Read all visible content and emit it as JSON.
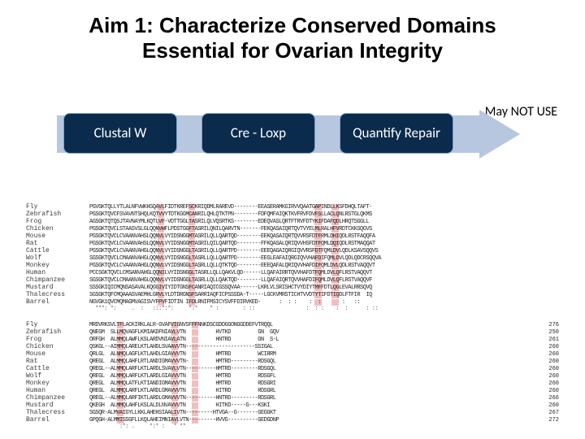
{
  "title": {
    "line1": "Aim 1: Characterize Conserved Domains",
    "line2": "Essential for Ovarian Integrity"
  },
  "note": "May NOT USE",
  "flow": {
    "pills": [
      {
        "label": "Clustal W"
      },
      {
        "label": "Cre - Loxp"
      },
      {
        "label": "Quantify Repair"
      }
    ],
    "arrow_bg_color": "#b6c7df",
    "pill_bg": "#0b2b4c",
    "pill_border": "#7da3c7",
    "pill_text": "#ffffff"
  },
  "alignment": {
    "highlight_color": "#eb8686",
    "block1": {
      "species": [
        "Fly",
        "Zebrafish",
        "Frog",
        "Chicken",
        "Mouse",
        "Rat",
        "Cattle",
        "Wolf",
        "Monkey",
        "Human",
        "Chimpanzee",
        "Mustard",
        "Thalecress",
        "Barrel"
      ],
      "sequences": [
        "PGVGKTQLLYTLALNFVWKHSQAVLFIDTKREFSCKRIQDMLRAREVD--------EEASERAMKGIRVVQAATGAPINDLLKSFDHQLTAFT-",
        "PGSGKTQVCFSVAVNTSHQLKQTVVYTDTKGGMCANRILQHLQTKTPN--------FDFQMFAIQKTKVFRVFDVFSLLACLQNLRSTGLQKMS",
        "AGSGKTQTQSJTAVNAYMLKQTLVF-VDTTGGLTASRILQLVQSRTKS--------EDEQVASLQRTFTRVFDTYKIFDAFQDLHRQTSGGLL",
        "PGSGKTQVCLSTAASVSLGLQQNVWFLPDSTGGFTASRILQNILQARVTN-------FEKQASAIQRTQVTVYELMLRALHFVRDTCKKSQGVS",
        "PGSGKTQVCLCVAANVAHSLQQNVLVYIDSNGGMTASRILQLLQARTQD--------EEKQASAIQRTQVVRSFDTFRMLDHIQDLRSTFAQQFA",
        "PGSGKTQVCLCVAANVAHSLQQNVLVYIDSNGGMTASRILQILQARTQD--------FFKQASALQRIQVVHSFDTFQMLDQIQDLRSTMAQQAT",
        "PGSGKTQVCLCVAANVAHGLQQNVLVYIDSNGGLTASRILQLLQARTPD--------EEEQAGAIQRGIQVVRSFDTFQMLDVLQDLKSAVSQQVS",
        "SGSGKTQVCLCMAANVAHGLQQNVLVYIDSNGGLTASRLLQLLQARTPD--------EEGLEAFAIQRGIQVVHAFDIFQMLDVLQDLQDCRSQQVA",
        "PGSGKTQVCLCVAANVAHGLQQNVLVYIDSNGGLTASRLLQLLQTKTQD--------EEEQAFALQRIQVVHAFDIFQMLDVLQDLRSTVAQQVT",
        "PCCSGKTQVCLCMSANVAHGLQQNILVYIDSNGGLTASRLLQLLQAKVLQD------LLQAFAIRRTQVVHAFDTFQMLDVLQFLRSTVAQQVT",
        "SGSGKTQVCLCMAANVAHGLQQNVLVYIDSNGGLTASRLLQLLQAKTQD--------LLQAFAIQRTQVVHAFDIFQMLDVLQFLRSTVAQQVF",
        "SSSGKIQICMQNSASAVALKQGGIVIYIDTGNSFCANRIAQICGSSQVAA------LKRLVLSRISHCTVYDIYTMFFDTLQGLEVALRRSQVQ",
        "SGSGKTQFCMQAAASVAEMHLGRVLYLDTDRGNSFSARRIAQFICPSSSDA-T-----LGCKVMRSTICHTVVDTYTIFDTIQDLFTFIR  IQ",
        "NGVGK1QVCMQMAGMVAGISVYFPVFIDTIN IFDLRNIFMSICYSVFFDIRVKED-      :  : :    :  :       :   ::    "
      ],
      "highlight_cols": [
        20,
        29,
        66,
        71
      ],
      "conservation": "  ***: *:     .  :   :::*:*:     *:*    * :        : ::                 :  : :    :  :      : ::"
    },
    "block2": {
      "species": [
        "Fly",
        "Zebrafish",
        "Frog",
        "Chicken",
        "Mouse",
        "Rat",
        "Cattle",
        "Wolf",
        "Monkey",
        "Human",
        "Chimpanzee",
        "Mustard",
        "Thalecress",
        "Barrel"
      ],
      "sequences": [
        "MRDVRKSVLTFLACKIRKLALR-GVAFVIGNVSFFFNNKDSCGDDGGONGGDDEFVTRQQL",
        "QNEGM  SLLMQVAGFLKMIAKDFNIAVLVTN          HVTKD         GN  GQV",
        "ORFGH  ALMMQLAWFLKSLARDVNIAVLATN          HNTRD         GN  S-L",
        "QSKGL--AIMMQLARELKTLAHDLSVAAVVTN-----------------------SSIGAL",
        "QRLGL  ALNMQLAGFLKTLAHDLGIAVVVTN          HMTRD         WCIRRM",
        "QREGL  ALMMQLAHFLRTLANDIGMAVVVTN-         HMTRD---------RDSGQL",
        "QREGL--ALMMQLARFLKTLARDLSVAVLVTN----------HMTRD---------RDSGQL",
        "QREGL  ALMMQLARFLKTLARDLGIAVVVTN          HMTRD         RDSGFL",
        "QREGL  ALMMQLATFLKTIANDIGMAVVVTN          HMTRD         RDSGRI",
        "QREGL  ALMMQLARFLKTLARDLGMAVVVTN          HITRD         RDSGRL",
        "QREGL--ALMMQLARFIKTLARDLGMAVVVTN----------HNTRD---------RDSGRL",
        "QKEGH  ALMMQLAHFLKSLALDLNVAVVVTN          HITKD-----G---KSKI",
        "SGSQR-ALMVAIGYLLKKLAHEHSIAALIVTN---------HTVGA--G-------GEGGKT",
        "GPQGH-ALMMISSGFLLKQLAHEIMNIAVLVTN---------HVVG----------GEDGDNP"
      ],
      "positions": [
        276,
        250,
        261,
        260,
        260,
        260,
        260,
        260,
        260,
        260,
        266,
        260,
        267,
        272
      ],
      "highlight_cols": [
        8,
        24,
        30
      ],
      "conservation": "          :*: .     *:* :   * **                                "
    }
  }
}
